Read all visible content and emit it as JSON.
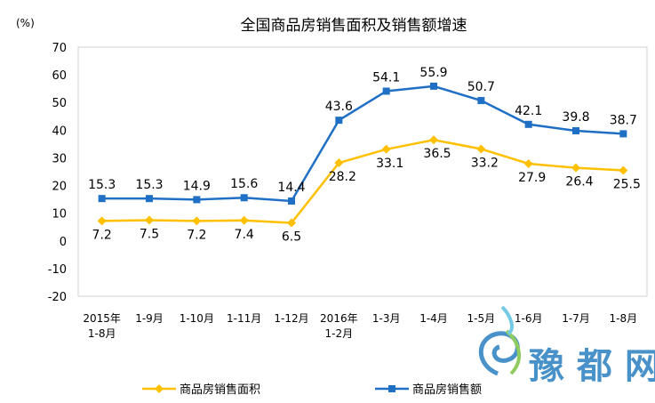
{
  "chart_data": {
    "type": "line",
    "title": "全国商品房销售面积及销售额增速",
    "ylabel": "(%)",
    "ylim": [
      -20,
      70
    ],
    "yticks": [
      70,
      60,
      50,
      40,
      30,
      20,
      10,
      0,
      -10,
      -20
    ],
    "grid": false,
    "legend_position": "bottom",
    "categories": [
      [
        "2015年",
        "1-8月"
      ],
      [
        "1-9月"
      ],
      [
        "1-10月"
      ],
      [
        "1-11月"
      ],
      [
        "1-12月"
      ],
      [
        "2016年",
        "1-2月"
      ],
      [
        "1-3月"
      ],
      [
        "1-4月"
      ],
      [
        "1-5月"
      ],
      [
        "1-6月"
      ],
      [
        "1-7月"
      ],
      [
        "1-8月"
      ]
    ],
    "series": [
      {
        "name": "商品房销售面积",
        "color": "#FFC000",
        "values": [
          7.2,
          7.5,
          7.2,
          7.4,
          6.5,
          28.2,
          33.1,
          36.5,
          33.2,
          27.9,
          26.4,
          25.5
        ]
      },
      {
        "name": "商品房销售额",
        "color": "#1F6FC5",
        "values": [
          15.3,
          15.3,
          14.9,
          15.6,
          14.4,
          43.6,
          54.1,
          55.9,
          50.7,
          42.1,
          39.8,
          38.7
        ]
      }
    ]
  },
  "watermark": {
    "text": "豫都网"
  }
}
